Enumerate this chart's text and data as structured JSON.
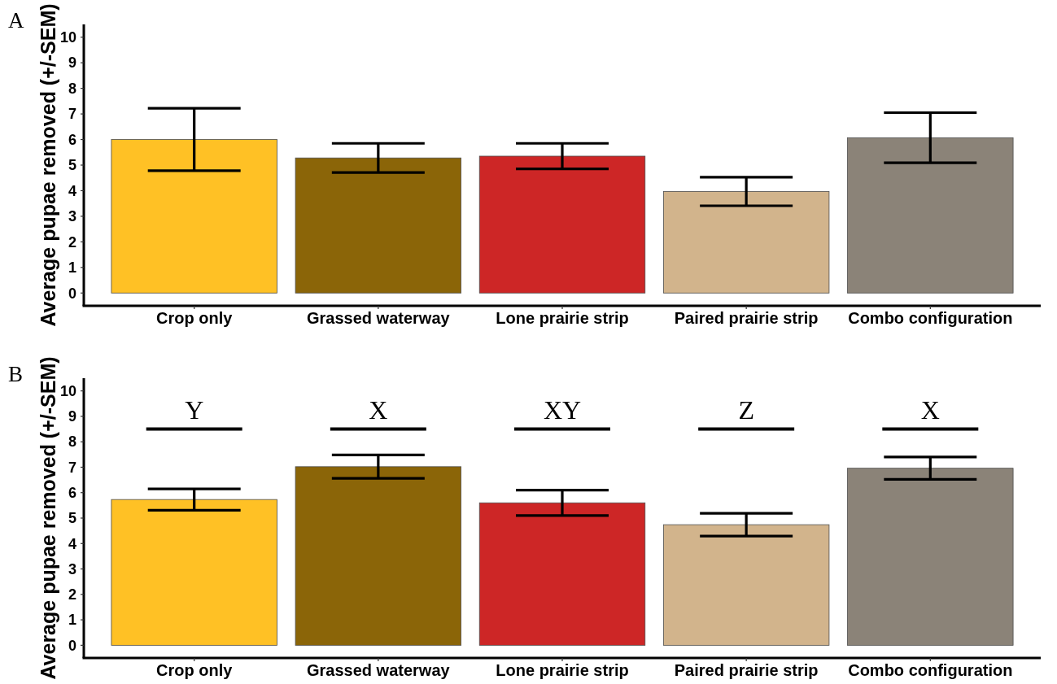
{
  "chart_data": [
    {
      "type": "bar",
      "title": "A",
      "ylabel": "Average pupae removed (+/-SEM)",
      "categories": [
        "Crop only",
        "Grassed waterway",
        "Lone prairie strip",
        "Paired prairie strip",
        "Combo configuration"
      ],
      "values": [
        6.0,
        5.28,
        5.35,
        3.97,
        6.07
      ],
      "errors": [
        1.22,
        0.57,
        0.5,
        0.56,
        0.98
      ],
      "colors": [
        "#ffc125",
        "#8b6508",
        "#cd2626",
        "#d2b48c",
        "#8b8378"
      ],
      "ylim": [
        -0.5,
        10.5
      ],
      "yticks": [
        0,
        1,
        2,
        3,
        4,
        5,
        6,
        7,
        8,
        9,
        10
      ]
    },
    {
      "type": "bar",
      "title": "B",
      "ylabel": "Average pupae removed (+/-SEM)",
      "categories": [
        "Crop only",
        "Grassed waterway",
        "Lone prairie strip",
        "Paired prairie strip",
        "Combo configuration"
      ],
      "values": [
        5.73,
        7.02,
        5.6,
        4.74,
        6.96
      ],
      "errors": [
        0.42,
        0.46,
        0.5,
        0.45,
        0.44
      ],
      "colors": [
        "#ffc125",
        "#8b6508",
        "#cd2626",
        "#d2b48c",
        "#8b8378"
      ],
      "ylim": [
        -0.5,
        10.5
      ],
      "yticks": [
        0,
        1,
        2,
        3,
        4,
        5,
        6,
        7,
        8,
        9,
        10
      ],
      "annotations": [
        "Y",
        "X",
        "XY",
        "Z",
        "X"
      ]
    }
  ]
}
